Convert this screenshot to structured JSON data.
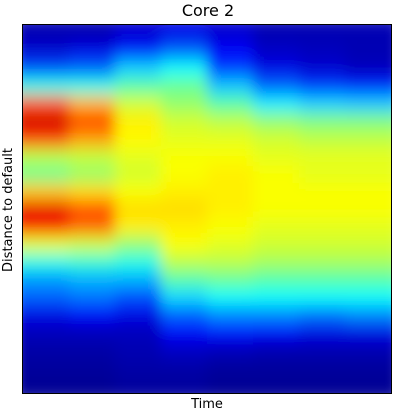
{
  "chart_data": {
    "type": "heatmap",
    "title": "Core 2",
    "xlabel": "Time",
    "ylabel": "Distance to default",
    "colormap": "jet",
    "value_range": [
      0,
      1
    ],
    "x_ticks": [],
    "y_ticks": [],
    "grid": false,
    "legend": "none",
    "columns_sampled": 8,
    "rows_sampled": 21,
    "values": [
      [
        0.05,
        0.05,
        0.08,
        0.1,
        0.08,
        0.05,
        0.05,
        0.05
      ],
      [
        0.08,
        0.1,
        0.15,
        0.22,
        0.12,
        0.07,
        0.06,
        0.05
      ],
      [
        0.2,
        0.22,
        0.33,
        0.38,
        0.18,
        0.1,
        0.08,
        0.06
      ],
      [
        0.4,
        0.4,
        0.46,
        0.48,
        0.32,
        0.22,
        0.18,
        0.16
      ],
      [
        0.8,
        0.7,
        0.58,
        0.52,
        0.46,
        0.36,
        0.33,
        0.32
      ],
      [
        0.92,
        0.82,
        0.64,
        0.58,
        0.56,
        0.52,
        0.5,
        0.5
      ],
      [
        0.82,
        0.72,
        0.63,
        0.6,
        0.6,
        0.58,
        0.56,
        0.56
      ],
      [
        0.56,
        0.57,
        0.6,
        0.62,
        0.62,
        0.6,
        0.6,
        0.6
      ],
      [
        0.48,
        0.52,
        0.58,
        0.62,
        0.64,
        0.62,
        0.6,
        0.6
      ],
      [
        0.68,
        0.66,
        0.62,
        0.64,
        0.64,
        0.62,
        0.62,
        0.62
      ],
      [
        0.9,
        0.8,
        0.66,
        0.66,
        0.64,
        0.62,
        0.62,
        0.62
      ],
      [
        0.88,
        0.78,
        0.64,
        0.64,
        0.62,
        0.6,
        0.6,
        0.6
      ],
      [
        0.6,
        0.58,
        0.52,
        0.62,
        0.6,
        0.58,
        0.58,
        0.58
      ],
      [
        0.4,
        0.42,
        0.4,
        0.56,
        0.56,
        0.54,
        0.54,
        0.54
      ],
      [
        0.28,
        0.3,
        0.3,
        0.46,
        0.48,
        0.46,
        0.46,
        0.46
      ],
      [
        0.22,
        0.24,
        0.2,
        0.34,
        0.38,
        0.38,
        0.38,
        0.38
      ],
      [
        0.1,
        0.12,
        0.1,
        0.22,
        0.26,
        0.26,
        0.24,
        0.26
      ],
      [
        0.06,
        0.06,
        0.06,
        0.12,
        0.14,
        0.12,
        0.1,
        0.1
      ],
      [
        0.04,
        0.04,
        0.05,
        0.07,
        0.06,
        0.05,
        0.05,
        0.05
      ],
      [
        0.03,
        0.03,
        0.04,
        0.04,
        0.03,
        0.03,
        0.03,
        0.03
      ],
      [
        0.02,
        0.02,
        0.03,
        0.03,
        0.02,
        0.02,
        0.02,
        0.02
      ]
    ]
  }
}
